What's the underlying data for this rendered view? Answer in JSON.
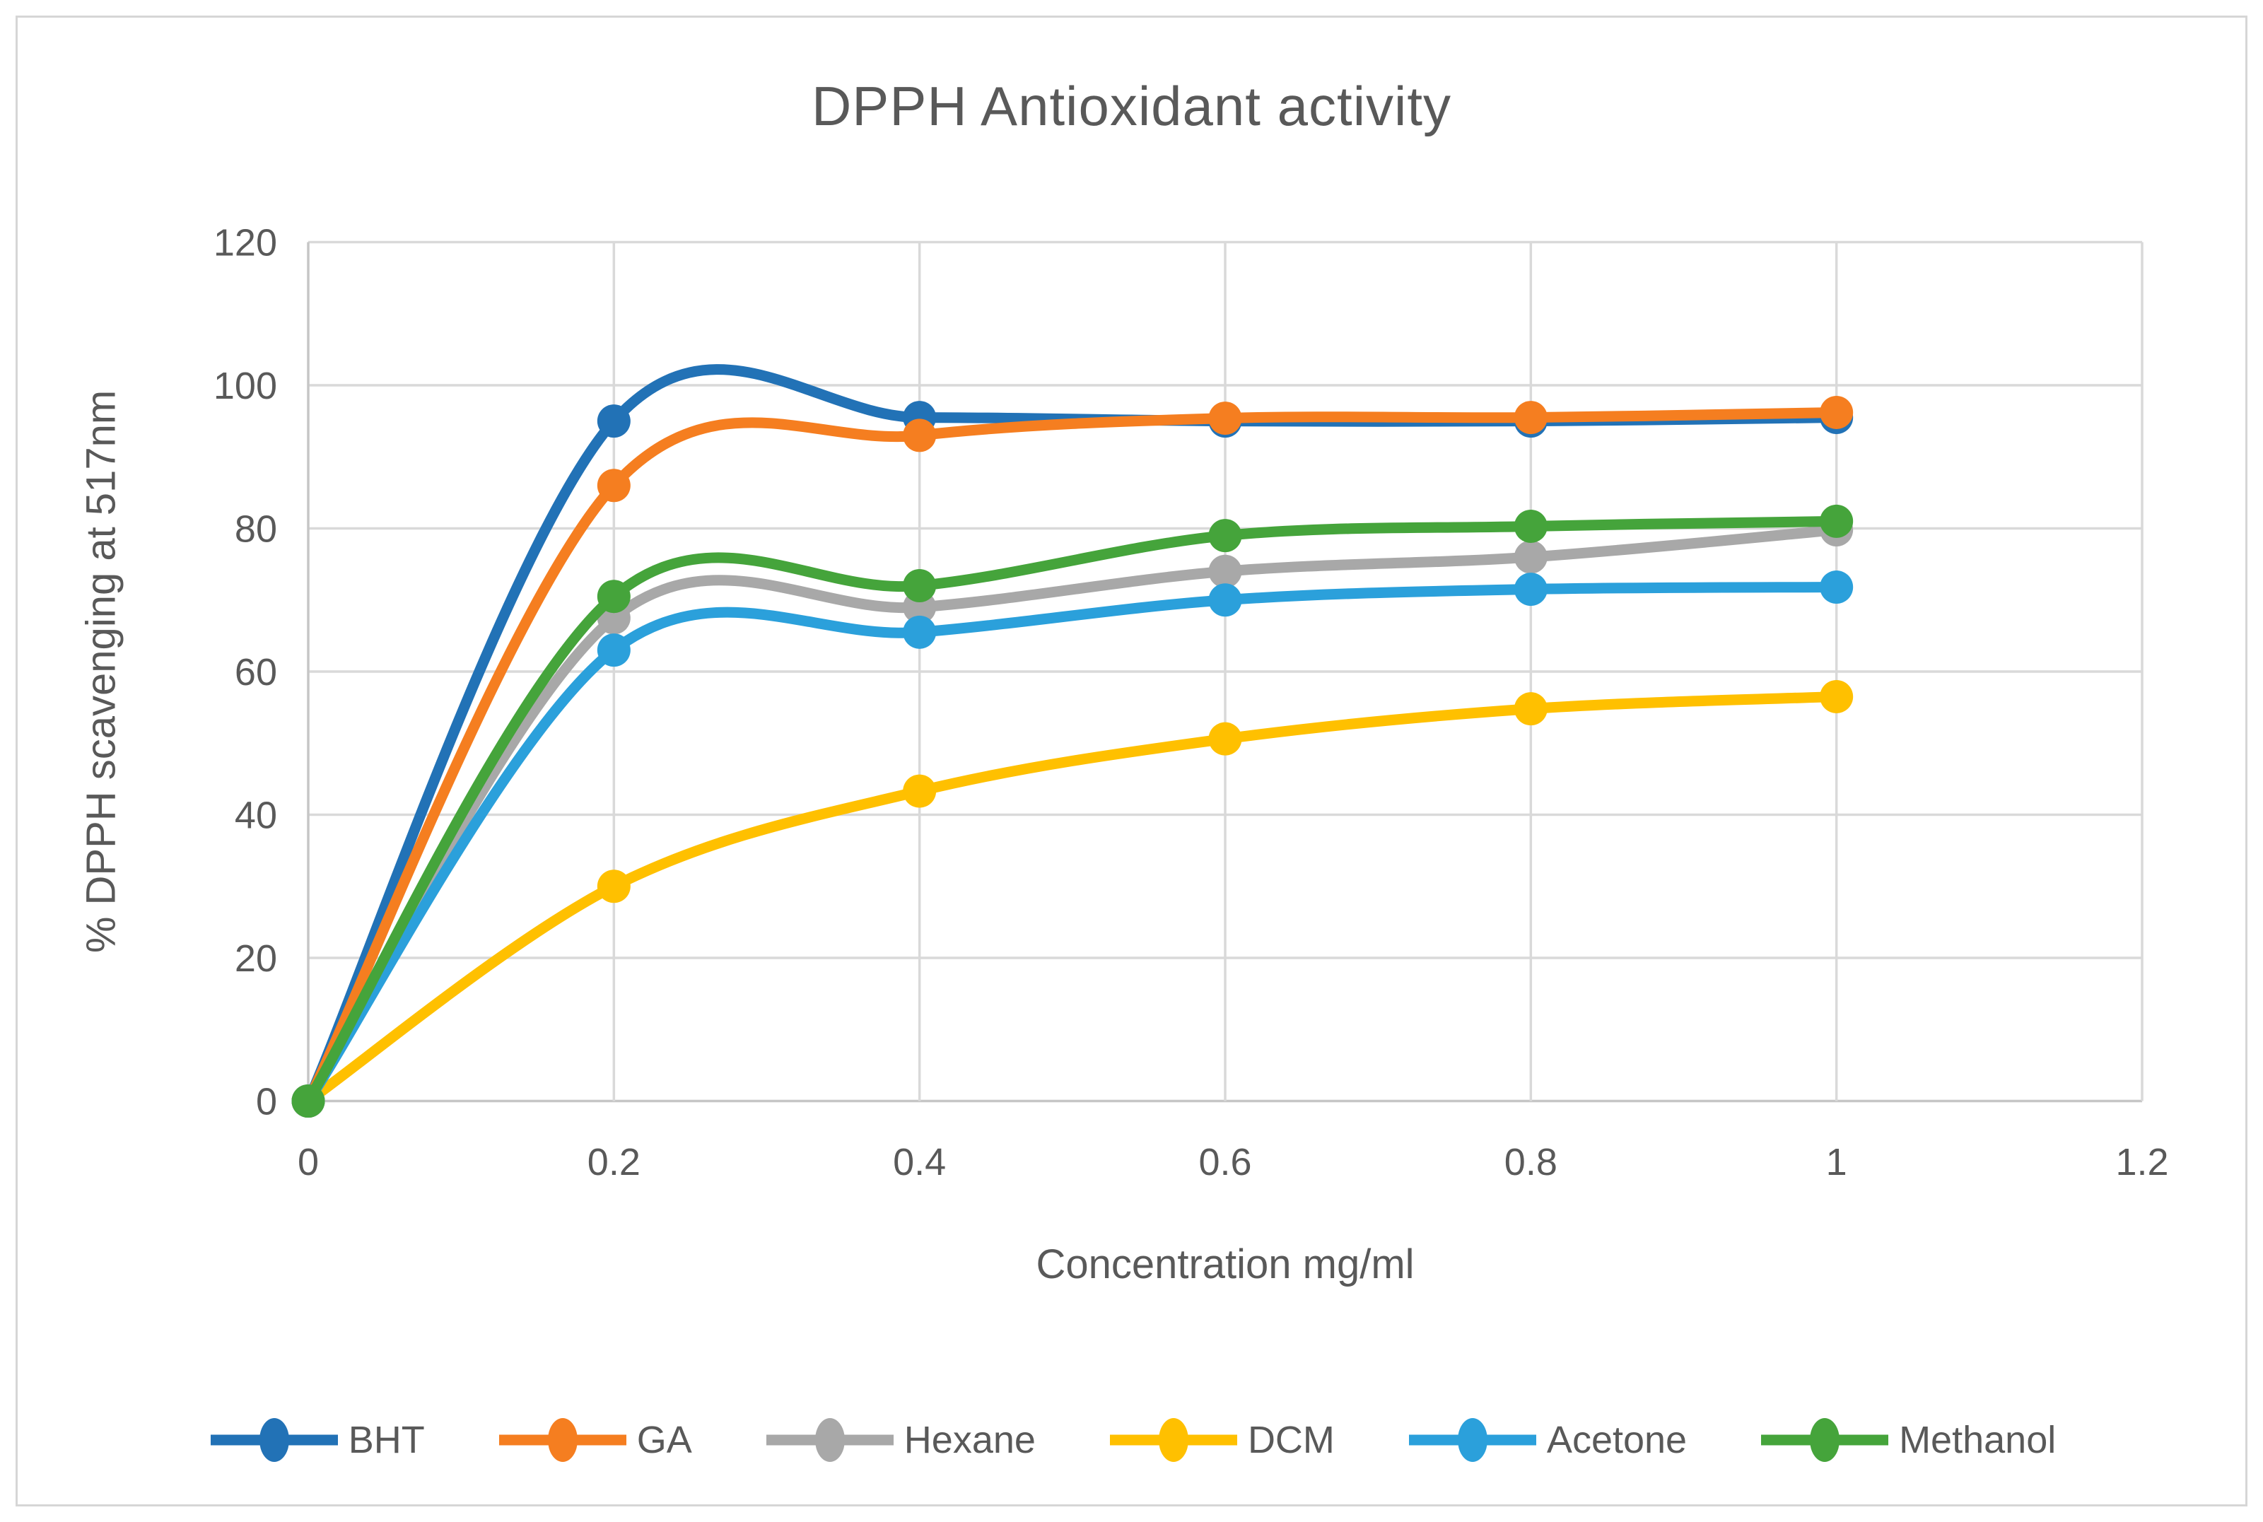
{
  "title": "DPPH Antioxidant activity",
  "colors": {
    "text": "#595959",
    "grid": "#D9D9D9",
    "axis": "#C6C6C6",
    "background": "#FFFFFF",
    "frame_border": "#D6D6D6"
  },
  "legend": {
    "position": "bottom",
    "items": [
      "BHT",
      "GA",
      "Hexane",
      "DCM",
      "Acetone",
      "Methanol"
    ]
  },
  "chart_data": {
    "type": "line",
    "title": "DPPH Antioxidant activity",
    "xlabel": "Concentration mg/ml",
    "ylabel": "% DPPH scavenging at 517nm",
    "x": [
      0,
      0.2,
      0.4,
      0.6,
      0.8,
      1
    ],
    "xlim": [
      0,
      1.2
    ],
    "ylim": [
      0,
      120
    ],
    "x_ticks": [
      "0",
      "0.2",
      "0.4",
      "0.6",
      "0.8",
      "1",
      "1.2"
    ],
    "x_tick_values": [
      0,
      0.2,
      0.4,
      0.6,
      0.8,
      1,
      1.2
    ],
    "y_ticks": [
      "0",
      "20",
      "40",
      "60",
      "80",
      "100",
      "120"
    ],
    "y_tick_values": [
      0,
      20,
      40,
      60,
      80,
      100,
      120
    ],
    "grid": true,
    "smooth": true,
    "legend_position": "bottom",
    "series": [
      {
        "name": "BHT",
        "color": "#2272B6",
        "values": [
          0,
          95,
          95.5,
          95,
          95,
          95.5
        ]
      },
      {
        "name": "GA",
        "color": "#F57E20",
        "values": [
          0,
          86,
          93,
          95.4,
          95.5,
          96.2
        ]
      },
      {
        "name": "Hexane",
        "color": "#A8A8A8",
        "values": [
          0,
          67.5,
          69,
          74,
          76,
          79.8
        ]
      },
      {
        "name": "DCM",
        "color": "#FFC000",
        "values": [
          0,
          30,
          43.3,
          50.6,
          54.8,
          56.5
        ]
      },
      {
        "name": "Acetone",
        "color": "#2BA0DB",
        "values": [
          0,
          63,
          65.5,
          70,
          71.5,
          71.8
        ]
      },
      {
        "name": "Methanol",
        "color": "#45A43B",
        "values": [
          0,
          70.5,
          72,
          79,
          80.3,
          81
        ]
      }
    ]
  }
}
